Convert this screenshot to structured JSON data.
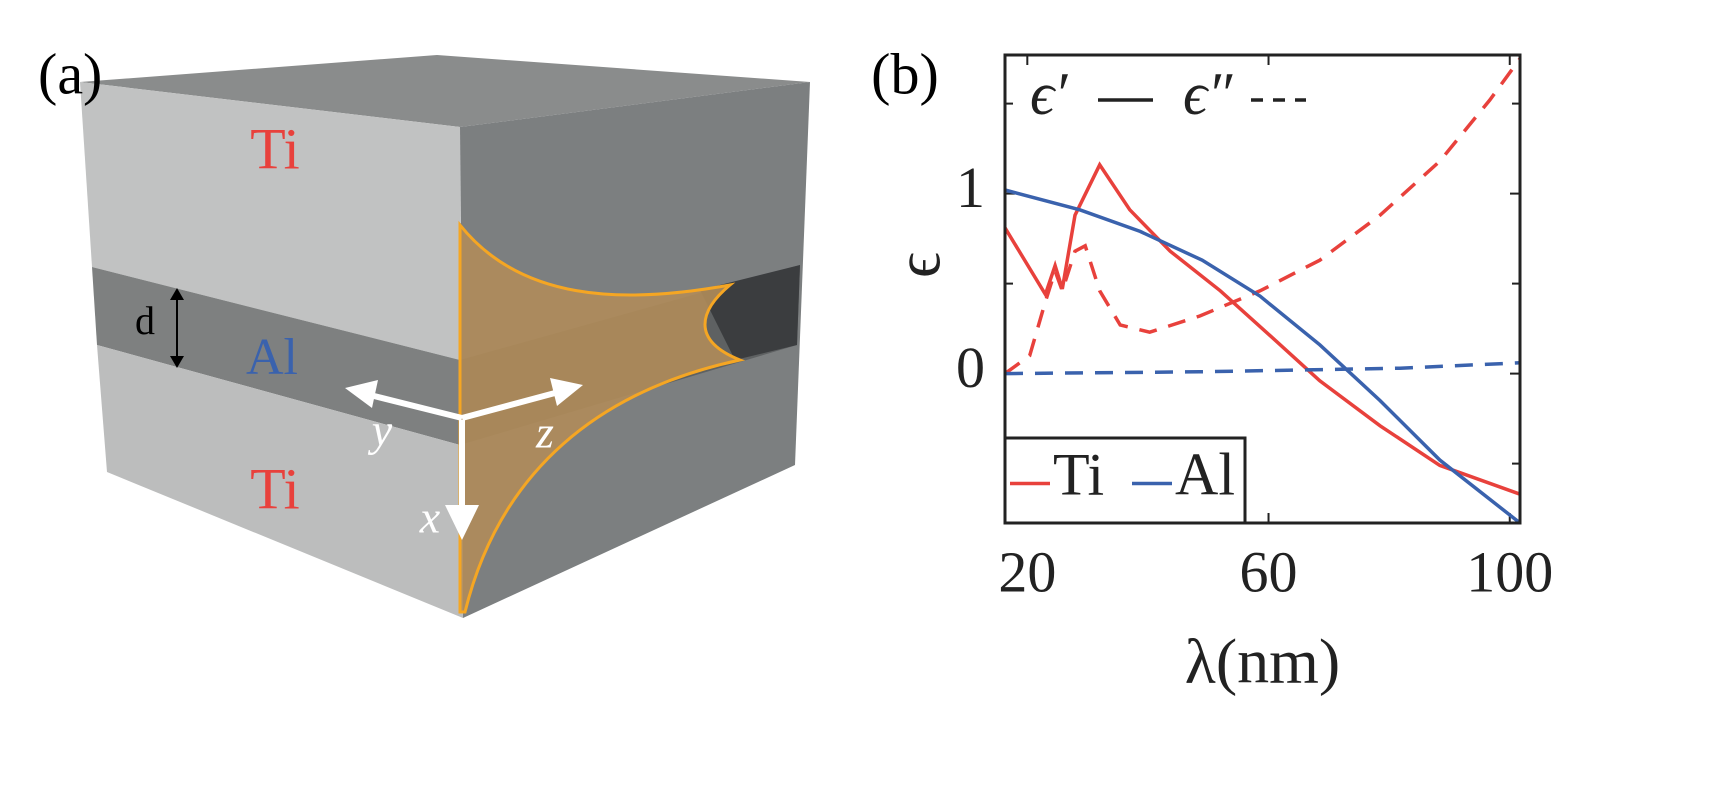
{
  "panel_a": {
    "label": "(a)",
    "top_layer": "Ti",
    "middle_layer": "Al",
    "bottom_layer": "Ti",
    "thickness": "d",
    "axis_y": "y",
    "axis_z": "z",
    "axis_x": "x"
  },
  "chart_data": {
    "type": "line",
    "panel_label": "(b)",
    "xlabel": "λ(nm)",
    "ylabel": "ϵ",
    "xlim": [
      16.3,
      101.7
    ],
    "xticks": [
      20,
      60,
      100
    ],
    "ylim": [
      -0.83,
      1.77
    ],
    "yticks": [
      0,
      1
    ],
    "yminor_ticks": [
      -0.5,
      0.5,
      1.5
    ],
    "legend": "lower left",
    "components": [
      {
        "name": "ϵ′",
        "dash": "solid"
      },
      {
        "name": "ϵ″",
        "dash": "dashed"
      }
    ],
    "series": [
      {
        "name": "Ti",
        "color": "#e8413c",
        "real": {
          "x": [
            16.3,
            23,
            24.6,
            25.8,
            27.9,
            32,
            37,
            43.7,
            52,
            60.3,
            68.5,
            78.5,
            88.4,
            101.7
          ],
          "values": [
            0.81,
            0.44,
            0.6,
            0.47,
            0.88,
            1.16,
            0.91,
            0.68,
            0.46,
            0.21,
            -0.04,
            -0.29,
            -0.51,
            -0.67
          ]
        },
        "imag": {
          "x": [
            16.3,
            20.4,
            23,
            24.6,
            25.8,
            27.9,
            29.6,
            32,
            35.4,
            40.3,
            48.6,
            58.6,
            68.5,
            78.5,
            88.4,
            96.7,
            101.7
          ],
          "values": [
            0.0,
            0.1,
            0.4,
            0.57,
            0.46,
            0.68,
            0.71,
            0.46,
            0.27,
            0.23,
            0.32,
            0.46,
            0.63,
            0.88,
            1.18,
            1.52,
            1.75
          ]
        }
      },
      {
        "name": "Al",
        "color": "#3a62ad",
        "real": {
          "x": [
            16.3,
            28.7,
            38.7,
            49,
            58.6,
            68.5,
            78.5,
            88.4,
            101.7
          ],
          "values": [
            1.02,
            0.91,
            0.79,
            0.63,
            0.43,
            0.16,
            -0.15,
            -0.48,
            -0.83
          ]
        },
        "imag": {
          "x": [
            16.3,
            48.6,
            81.8,
            101.7
          ],
          "values": [
            0.0,
            0.01,
            0.03,
            0.06
          ]
        }
      }
    ]
  }
}
